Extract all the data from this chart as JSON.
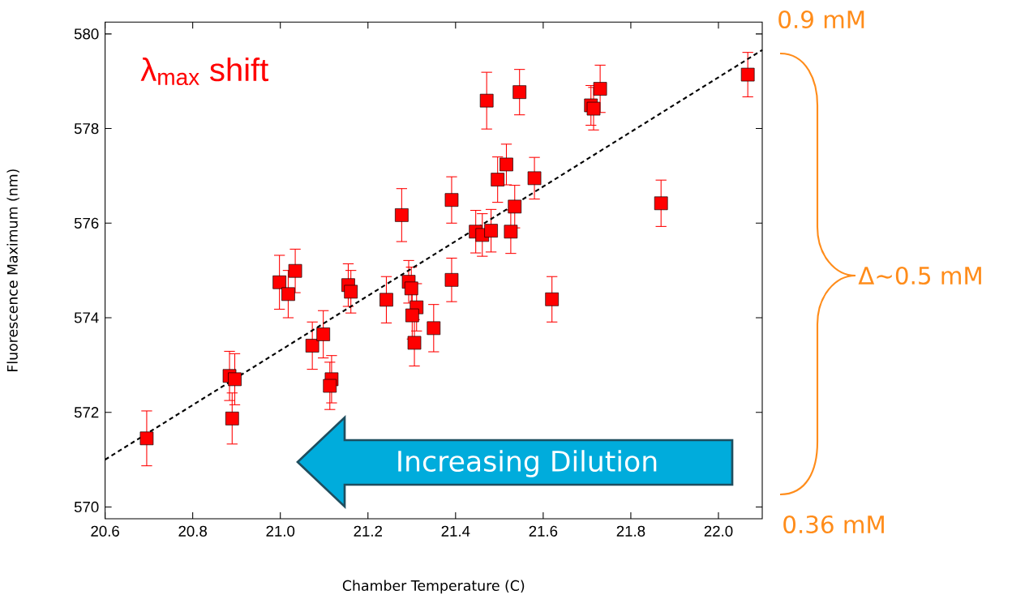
{
  "chart_data": {
    "type": "scatter",
    "xlabel": "Chamber Temperature (C)",
    "ylabel": "Fluorescence Maximum (nm)",
    "xlim": [
      20.6,
      22.1
    ],
    "ylim": [
      569.75,
      580.25
    ],
    "xticks": [
      20.6,
      20.8,
      {
        "value": 21,
        "label": "21.0"
      },
      21.2,
      21.4,
      21.6,
      21.8,
      {
        "value": 22,
        "label": "22.0"
      }
    ],
    "yticks": [
      570,
      572,
      574,
      576,
      578,
      580
    ],
    "grid": false,
    "annotations": [
      "λ$_{max}$ shift",
      "Increasing Dilution",
      "0.9 mM",
      "Δ~0.5 mM",
      "0.36 mM"
    ],
    "series": [
      {
        "color": "#ff0000",
        "marker": "square",
        "x": [
          20.695,
          20.884,
          20.896,
          20.89,
          20.998,
          21.018,
          21.034,
          21.073,
          21.098,
          21.117,
          21.113,
          21.155,
          21.161,
          21.242,
          21.277,
          21.293,
          21.299,
          21.311,
          21.301,
          21.306,
          21.35,
          21.391,
          21.391,
          21.446,
          21.461,
          21.481,
          21.471,
          21.496,
          21.516,
          21.526,
          21.535,
          21.546,
          21.58,
          21.62,
          21.709,
          21.715,
          21.73,
          21.869,
          22.067
        ],
        "values": [
          571.45,
          572.77,
          572.7,
          571.87,
          574.75,
          574.5,
          574.99,
          573.41,
          573.65,
          572.7,
          572.56,
          574.69,
          574.55,
          574.38,
          576.17,
          574.76,
          574.62,
          574.22,
          574.05,
          573.47,
          573.78,
          574.8,
          576.49,
          575.82,
          575.75,
          575.84,
          578.59,
          576.92,
          577.24,
          575.82,
          576.35,
          578.77,
          576.95,
          574.39,
          578.49,
          578.42,
          578.84,
          576.42,
          579.14
        ],
        "errors": [
          0.58,
          0.52,
          0.54,
          0.54,
          0.57,
          0.5,
          0.46,
          0.5,
          0.5,
          0.5,
          0.5,
          0.45,
          0.45,
          0.49,
          0.56,
          0.45,
          0.45,
          0.5,
          0.5,
          0.49,
          0.5,
          0.46,
          0.49,
          0.45,
          0.45,
          0.45,
          0.6,
          0.48,
          0.43,
          0.46,
          0.45,
          0.48,
          0.44,
          0.48,
          0.42,
          0.45,
          0.5,
          0.49,
          0.47
        ]
      },
      {
        "type": "line",
        "color": "#000000",
        "marker": "none",
        "line_style": "dashed",
        "x": [
          20.6,
          22.1
        ],
        "values": [
          571.0,
          579.66
        ]
      }
    ]
  }
}
